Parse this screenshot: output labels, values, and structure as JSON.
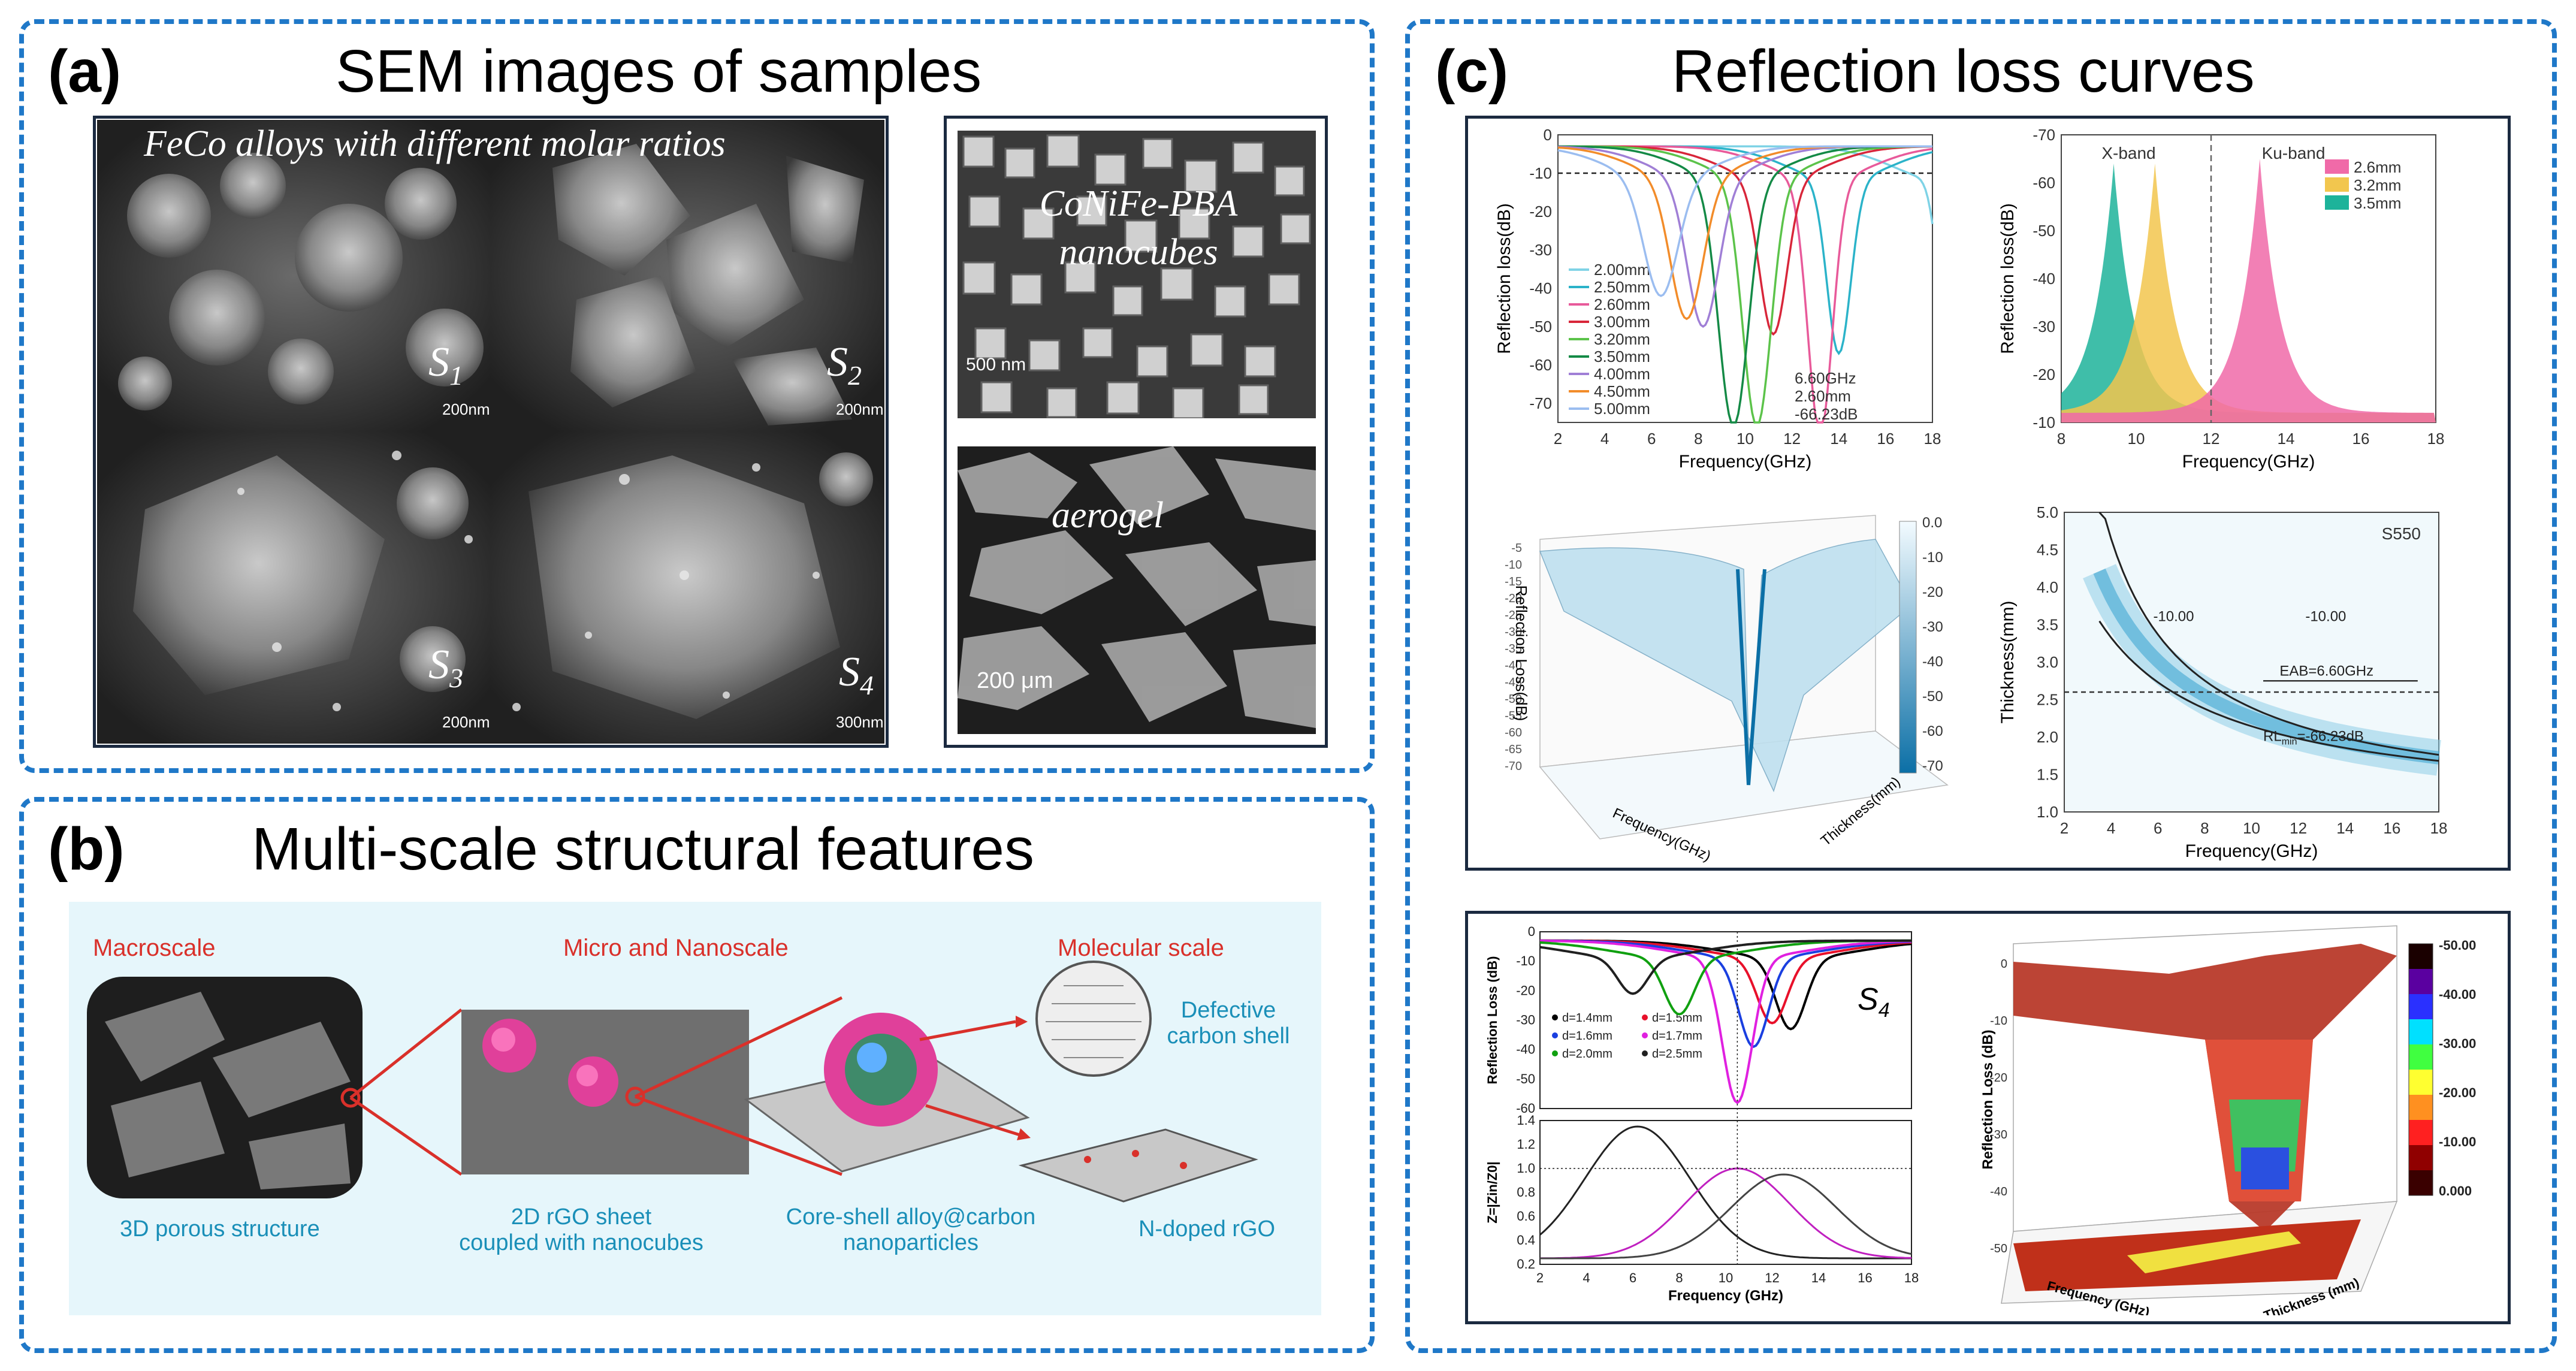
{
  "panel_a": {
    "tag": "(a)",
    "title": "SEM images of samples",
    "caption_left": "FeCo alloys with different molar ratios",
    "subs": [
      "S",
      "S",
      "S",
      "S"
    ],
    "sub_idx": [
      "1",
      "2",
      "3",
      "4"
    ],
    "scale_left": [
      "200nm",
      "200nm",
      "200nm",
      "300nm"
    ],
    "caption_pba": "CoNiFe-PBA nanocubes",
    "scale_pba": "500 nm",
    "caption_aerogel": "aerogel",
    "scale_aerogel": "200 μm"
  },
  "panel_b": {
    "tag": "(b)",
    "title": "Multi-scale structural features",
    "macro": "Macroscale",
    "micro": "Micro and Nanoscale",
    "molecular": "Molecular scale",
    "porous": "3D porous structure",
    "rgo_line1": "2D rGO sheet",
    "rgo_line2": "coupled with nanocubes",
    "core_line1": "Core-shell alloy@carbon",
    "core_line2": "nanoparticles",
    "defect_line1": "Defective",
    "defect_line2": "carbon shell",
    "ndoped": "N-doped rGO"
  },
  "panel_c": {
    "tag": "(c)",
    "title": "Reflection loss curves"
  },
  "chart_data": [
    {
      "type": "line",
      "xlabel": "Frequency(GHz)",
      "ylabel": "Reflection loss(dB)",
      "xlim": [
        2,
        18
      ],
      "ylim": [
        -75,
        0
      ],
      "xticks": [
        "2",
        "4",
        "6",
        "8",
        "10",
        "12",
        "14",
        "16",
        "18"
      ],
      "yticks": [
        "0",
        "-10",
        "-20",
        "-30",
        "-40",
        "-50",
        "-60",
        "-70"
      ],
      "reference_line": -10,
      "series": [
        {
          "name": "2.00mm",
          "color": "#7fd3e6",
          "fmin": 18.5,
          "rlmin": -28
        },
        {
          "name": "2.50mm",
          "color": "#2bb3c9",
          "fmin": 14.0,
          "rlmin": -45
        },
        {
          "name": "2.60mm",
          "color": "#e85a9a",
          "fmin": 13.2,
          "rlmin": -66
        },
        {
          "name": "3.00mm",
          "color": "#d8263a",
          "fmin": 11.2,
          "rlmin": -40
        },
        {
          "name": "3.20mm",
          "color": "#5cc34a",
          "fmin": 10.5,
          "rlmin": -64
        },
        {
          "name": "3.50mm",
          "color": "#148a46",
          "fmin": 9.5,
          "rlmin": -64
        },
        {
          "name": "4.00mm",
          "color": "#a07fd6",
          "fmin": 8.2,
          "rlmin": -38
        },
        {
          "name": "4.50mm",
          "color": "#f28c2a",
          "fmin": 7.5,
          "rlmin": -36
        },
        {
          "name": "5.00mm",
          "color": "#9bbdf0",
          "fmin": 6.4,
          "rlmin": -30
        }
      ],
      "annotation": [
        "6.60GHz",
        "2.60mm",
        "-66.23dB"
      ]
    },
    {
      "type": "area",
      "xlabel": "Frequency(GHz)",
      "ylabel": "Reflection loss(dB)",
      "xlim": [
        8,
        18
      ],
      "ylim": [
        -70,
        -10
      ],
      "xticks": [
        "8",
        "10",
        "12",
        "14",
        "16",
        "18"
      ],
      "yticks": [
        "-70",
        "-60",
        "-50",
        "-40",
        "-30",
        "-20",
        "-10"
      ],
      "band_labels": [
        "X-band",
        "Ku-band"
      ],
      "band_split": 12,
      "series": [
        {
          "name": "2.6mm",
          "color": "#f06aa8",
          "fpeak": 13.3,
          "rlpeak": -65
        },
        {
          "name": "3.2mm",
          "color": "#f2c64e",
          "fpeak": 10.5,
          "rlpeak": -64
        },
        {
          "name": "3.5mm",
          "color": "#1db39a",
          "fpeak": 9.4,
          "rlpeak": -64
        }
      ]
    },
    {
      "type": "heatmap",
      "subtype": "3d-surface",
      "xlabel": "Frequency(GHz)",
      "ylabel": "Reflection Loss(dB)",
      "zlabel": "Thickness(mm)",
      "colorbar_ticks": [
        "0.0",
        "-10",
        "-20",
        "-30",
        "-40",
        "-50",
        "-60",
        "-70"
      ],
      "yticks": [
        "-70",
        "-65",
        "-60",
        "-55",
        "-50",
        "-45",
        "-40",
        "-35",
        "-30",
        "-25",
        "-20",
        "-15",
        "-10",
        "-5"
      ]
    },
    {
      "type": "heatmap",
      "subtype": "contour",
      "label": "S550",
      "xlabel": "Frequency(GHz)",
      "ylabel": "Thickness(mm)",
      "xlim": [
        2,
        18
      ],
      "ylim": [
        1.0,
        5.0
      ],
      "xticks": [
        "2",
        "4",
        "6",
        "8",
        "10",
        "12",
        "14",
        "16",
        "18"
      ],
      "yticks": [
        "1.0",
        "1.5",
        "2.0",
        "2.5",
        "3.0",
        "3.5",
        "4.0",
        "4.5",
        "5.0"
      ],
      "contour_labels": [
        "-10.00",
        "-10.00"
      ],
      "annotations": [
        "EAB=6.60GHz",
        "RL",
        "min",
        "=-66.23dB"
      ]
    },
    {
      "type": "line",
      "label": "S",
      "label_sub": "4",
      "xlabel": "Frequency (GHz)",
      "ylabel_top": "Reflection Loss (dB)",
      "ylabel_bottom": "Z=|Zin/Z0|",
      "xlim": [
        2,
        18
      ],
      "xticks": [
        "2",
        "4",
        "6",
        "8",
        "10",
        "12",
        "14",
        "16",
        "18"
      ],
      "yticks_top": [
        "0",
        "-10",
        "-20",
        "-30",
        "-40",
        "-50",
        "-60"
      ],
      "yticks_bottom": [
        "0.2",
        "0.4",
        "0.6",
        "0.8",
        "1.0",
        "1.2",
        "1.4"
      ],
      "series": [
        {
          "name": "d=1.4mm",
          "color": "#000000",
          "fmin": 12.8,
          "rlmin": -30
        },
        {
          "name": "d=1.5mm",
          "color": "#e8102a",
          "fmin": 12.0,
          "rlmin": -28
        },
        {
          "name": "d=1.6mm",
          "color": "#1a3fe0",
          "fmin": 11.2,
          "rlmin": -36
        },
        {
          "name": "d=1.7mm",
          "color": "#e020e0",
          "fmin": 10.5,
          "rlmin": -55
        },
        {
          "name": "d=2.0mm",
          "color": "#10a010",
          "fmin": 8.0,
          "rlmin": -25
        },
        {
          "name": "d=2.5mm",
          "color": "#202020",
          "fmin": 6.0,
          "rlmin": -18
        }
      ]
    },
    {
      "type": "heatmap",
      "subtype": "3d-surface",
      "xlabel": "Frequency (GHz)",
      "ylabel": "Reflection Loss (dB)",
      "zlabel": "Thickness (mm)",
      "colorbar_ticks": [
        "-50.00",
        "-40.00",
        "-30.00",
        "-20.00",
        "-10.00",
        "0.000"
      ],
      "yticks": [
        "0",
        "-10",
        "-20",
        "-30",
        "-40",
        "-50"
      ]
    }
  ]
}
